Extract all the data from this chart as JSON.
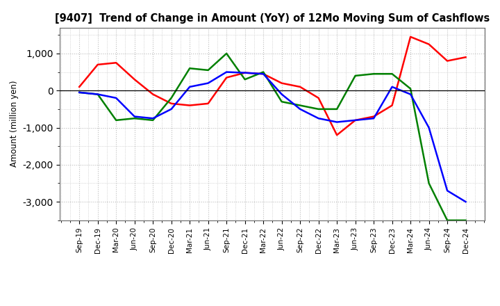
{
  "title": "[9407]  Trend of Change in Amount (YoY) of 12Mo Moving Sum of Cashflows",
  "ylabel": "Amount (million yen)",
  "x_labels": [
    "Sep-19",
    "Dec-19",
    "Mar-20",
    "Jun-20",
    "Sep-20",
    "Dec-20",
    "Mar-21",
    "Jun-21",
    "Sep-21",
    "Dec-21",
    "Mar-22",
    "Jun-22",
    "Sep-22",
    "Dec-22",
    "Mar-23",
    "Jun-23",
    "Sep-23",
    "Dec-23",
    "Mar-24",
    "Jun-24",
    "Sep-24",
    "Dec-24"
  ],
  "operating": [
    100,
    700,
    750,
    300,
    -100,
    -350,
    -400,
    -350,
    350,
    480,
    450,
    200,
    100,
    -200,
    -1200,
    -800,
    -700,
    -400,
    1450,
    1250,
    800,
    900
  ],
  "investing": [
    -50,
    -100,
    -800,
    -750,
    -800,
    -200,
    600,
    550,
    1000,
    300,
    500,
    -300,
    -400,
    -500,
    -500,
    400,
    450,
    450,
    50,
    -2500,
    -3500,
    -3500
  ],
  "free": [
    -50,
    -100,
    -200,
    -700,
    -750,
    -500,
    100,
    200,
    500,
    480,
    450,
    -100,
    -500,
    -750,
    -850,
    -800,
    -750,
    100,
    -100,
    -1000,
    -2700,
    -3000
  ],
  "operating_color": "#ff0000",
  "investing_color": "#008000",
  "free_color": "#0000ff",
  "ylim": [
    -3500,
    1700
  ],
  "yticks": [
    -3000,
    -2000,
    -1000,
    0,
    1000
  ],
  "background_color": "#ffffff",
  "grid_color": "#bbbbbb"
}
